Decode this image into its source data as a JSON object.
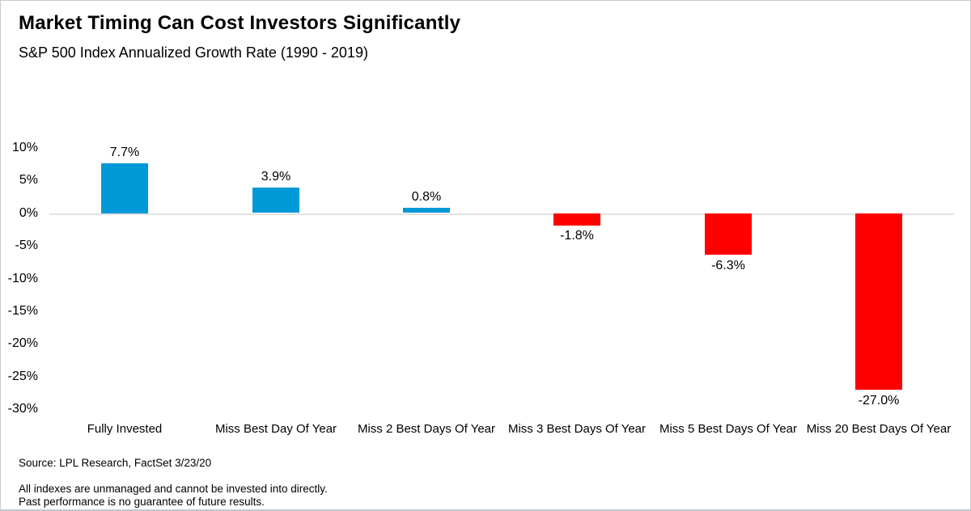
{
  "header": {
    "title": "Market Timing Can Cost Investors Significantly",
    "subtitle": "S&P 500 Index Annualized Growth Rate (1990 - 2019)"
  },
  "footer": {
    "source": "Source: LPL Research, FactSet 3/23/20",
    "disclaimer_line1": "All indexes are unmanaged and cannot be invested into directly.",
    "disclaimer_line2": "Past performance is no guarantee of future results."
  },
  "chart_data": {
    "type": "bar",
    "title": "Market Timing Can Cost Investors Significantly",
    "subtitle": "S&P 500 Index Annualized Growth Rate (1990 - 2019)",
    "categories": [
      "Fully Invested",
      "Miss Best Day Of Year",
      "Miss 2 Best Days Of Year",
      "Miss 3 Best Days Of Year",
      "Miss 5 Best Days Of Year",
      "Miss 20 Best Days Of Year"
    ],
    "values": [
      7.7,
      3.9,
      0.8,
      -1.8,
      -6.3,
      -27.0
    ],
    "value_labels": [
      "7.7%",
      "3.9%",
      "0.8%",
      "-1.8%",
      "-6.3%",
      "-27.0%"
    ],
    "xlabel": "",
    "ylabel": "",
    "ylim": [
      -30,
      10
    ],
    "ytick_values": [
      10,
      5,
      0,
      -5,
      -10,
      -15,
      -20,
      -25,
      -30
    ],
    "ytick_labels": [
      "10%",
      "5%",
      "0%",
      "-5%",
      "-10%",
      "-15%",
      "-20%",
      "-25%",
      "-30%"
    ],
    "positive_color": "#0099D8",
    "negative_color": "#FF0000",
    "gridlines": "zero-line-only",
    "legend": "none",
    "value_label_position": "outside-end"
  }
}
